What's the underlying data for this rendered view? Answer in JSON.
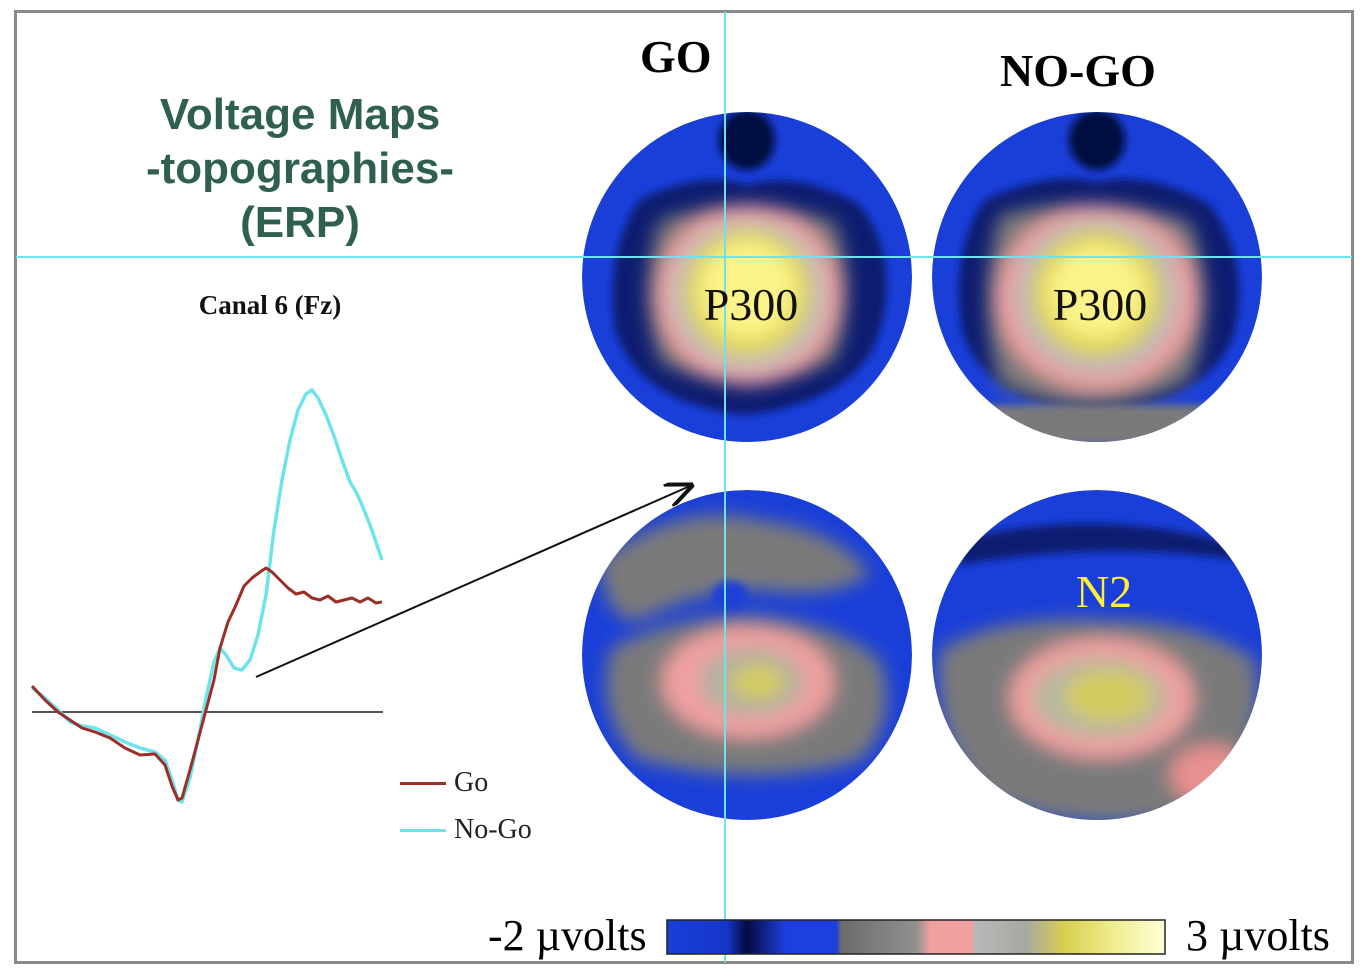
{
  "title": {
    "line1": "Voltage Maps",
    "line2": "-topographies-",
    "line3": "(ERP)"
  },
  "channel_label": "Canal 6 (Fz)",
  "columns": {
    "go": "GO",
    "nogo": "NO-GO"
  },
  "legend": [
    {
      "label": "Go",
      "color": "#9b2f25"
    },
    {
      "label": "No-Go",
      "color": "#6ee3ec"
    }
  ],
  "maps": {
    "go_top_label": "P300",
    "nogo_top_label": "P300",
    "nogo_bottom_label": "N2"
  },
  "colorbar": {
    "min_label": "-2 µvolts",
    "max_label": "3 µvolts",
    "stops": [
      "#1a3fd8",
      "#1536c8",
      "#050a40",
      "#1e3fe0",
      "#6c6c6c",
      "#909090",
      "#f2a0a0",
      "#b8b8b8",
      "#d8d050",
      "#f0ee90",
      "#ffffd8"
    ]
  },
  "colors": {
    "title": "#2f5f50",
    "crosshair": "#6ee3ec",
    "peak_label_yellow": "#ffef3a"
  }
}
